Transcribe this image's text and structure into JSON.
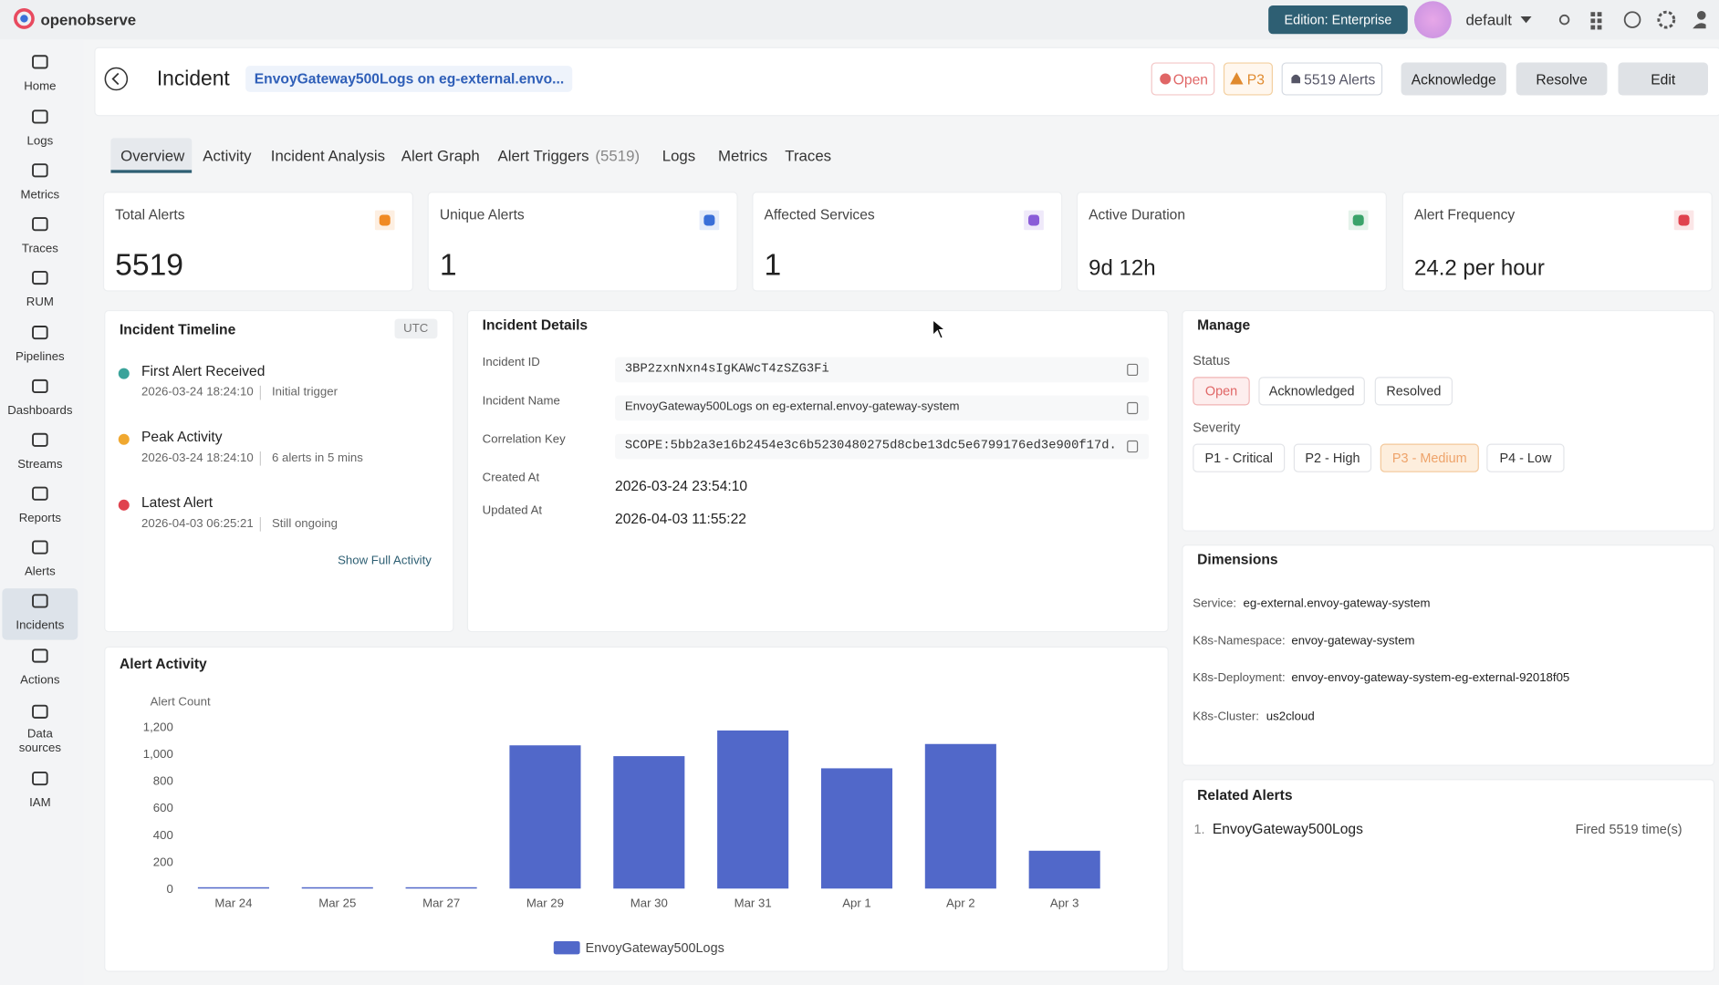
{
  "app": {
    "brand": "openobserve",
    "edition": "Edition: Enterprise",
    "org": "default"
  },
  "nav": [
    "Home",
    "Logs",
    "Metrics",
    "Traces",
    "RUM",
    "Pipelines",
    "Dashboards",
    "Streams",
    "Reports",
    "Alerts",
    "Incidents",
    "Actions",
    "Data sources",
    "IAM"
  ],
  "header": {
    "title": "Incident",
    "name": "EnvoyGateway500Logs on eg-external.envo...",
    "status": "Open",
    "severity": "P3",
    "alerts": "5519 Alerts",
    "buttons": [
      "Acknowledge",
      "Resolve",
      "Edit"
    ]
  },
  "tabs": [
    {
      "label": "Overview"
    },
    {
      "label": "Activity"
    },
    {
      "label": "Incident Analysis"
    },
    {
      "label": "Alert Graph"
    },
    {
      "label": "Alert Triggers",
      "count": "(5519)"
    },
    {
      "label": "Logs"
    },
    {
      "label": "Metrics"
    },
    {
      "label": "Traces"
    }
  ],
  "stats": [
    {
      "label": "Total Alerts",
      "value": 5519
    },
    {
      "label": "Unique Alerts",
      "value": 1
    },
    {
      "label": "Affected Services",
      "value": 1
    },
    {
      "label": "Active Duration",
      "value": "9d 12h"
    },
    {
      "label": "Alert Frequency",
      "value": "24.2 per hour"
    }
  ],
  "timeline": {
    "title": "Incident Timeline",
    "tz": "UTC",
    "events": [
      {
        "title": "First Alert Received",
        "time": "2026-03-24 18:24:10",
        "note": "Initial trigger"
      },
      {
        "title": "Peak Activity",
        "time": "2026-03-24 18:24:10",
        "note": "6 alerts in 5 mins"
      },
      {
        "title": "Latest Alert",
        "time": "2026-04-03 06:25:21",
        "note": "Still ongoing"
      }
    ],
    "link": "Show Full Activity"
  },
  "details": {
    "title": "Incident Details",
    "fields": [
      {
        "label": "Incident ID",
        "value": "3BP2zxnNxn4sIgKAWcT4zSZG3Fi"
      },
      {
        "label": "Incident Name",
        "value": "EnvoyGateway500Logs on eg-external.envoy-gateway-system"
      },
      {
        "label": "Correlation Key",
        "value": "SCOPE:5bb2a3e16b2454e3c6b5230480275d8cbe13dc5e6799176ed3e900f17d..."
      },
      {
        "label": "Created At",
        "value": "2026-03-24 23:54:10"
      },
      {
        "label": "Updated At",
        "value": "2026-04-03 11:55:22"
      }
    ]
  },
  "manage": {
    "title": "Manage",
    "status_label": "Status",
    "statuses": [
      "Open",
      "Acknowledged",
      "Resolved"
    ],
    "severity_label": "Severity",
    "severities": [
      "P1 - Critical",
      "P2 - High",
      "P3 - Medium",
      "P4 - Low"
    ]
  },
  "dimensions": {
    "title": "Dimensions",
    "items": [
      {
        "key": "Service:",
        "value": "eg-external.envoy-gateway-system"
      },
      {
        "key": "K8s-Namespace:",
        "value": "envoy-gateway-system"
      },
      {
        "key": "K8s-Deployment:",
        "value": "envoy-envoy-gateway-system-eg-external-92018f05"
      },
      {
        "key": "K8s-Cluster:",
        "value": "us2cloud"
      }
    ]
  },
  "related": {
    "title": "Related Alerts",
    "items": [
      {
        "index": "1.",
        "name": "EnvoyGateway500Logs",
        "fired": "Fired 5519 time(s)"
      }
    ]
  },
  "chart_data": {
    "type": "bar",
    "title": "Alert Activity",
    "y_label": "Alert Count",
    "categories": [
      "Mar 24",
      "Mar 25",
      "Mar 27",
      "Mar 29",
      "Mar 30",
      "Mar 31",
      "Apr 1",
      "Apr 2",
      "Apr 3"
    ],
    "series": [
      {
        "name": "EnvoyGateway500Logs",
        "color": "#5168c9",
        "values": [
          10,
          10,
          10,
          1060,
          980,
          1170,
          890,
          1070,
          280
        ]
      }
    ],
    "ylim": [
      0,
      1200
    ],
    "yticks": [
      0,
      200,
      400,
      600,
      800,
      {
        "value": 1000,
        "label": "1,000"
      },
      {
        "value": 1200,
        "label": "1,200"
      }
    ],
    "grid": false
  }
}
